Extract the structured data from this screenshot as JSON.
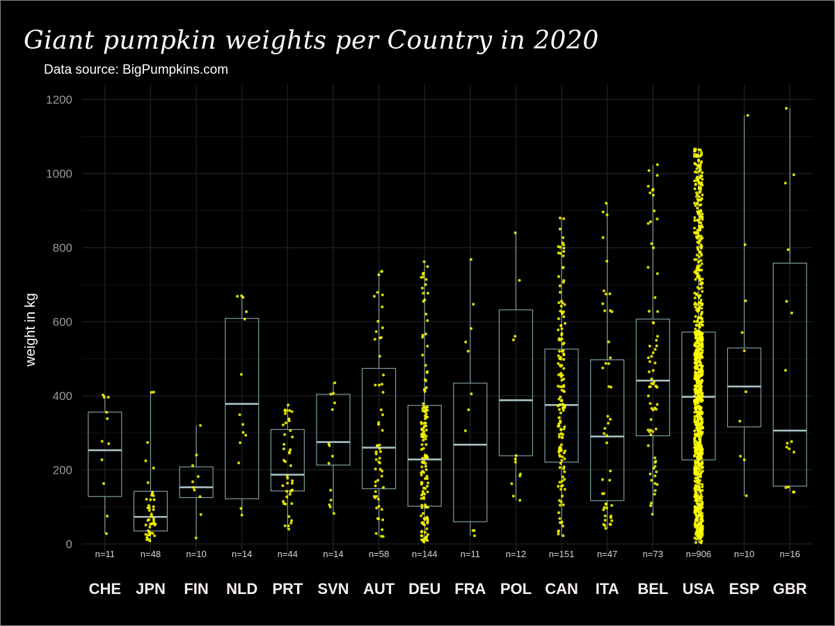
{
  "chart_data": {
    "type": "box",
    "title": "Giant pumpkin weights per Country in 2020",
    "subtitle": "Data source: BigPumpkins.com",
    "ylabel": "weight in kg",
    "xlabel": "",
    "ylim": [
      0,
      1200
    ],
    "yticks": [
      0,
      200,
      400,
      600,
      800,
      1000,
      1200
    ],
    "grid": true,
    "legend": "none",
    "colors": {
      "background": "#000000",
      "points": "#ffff00",
      "box_stroke": "#7f9ea3",
      "median": "#a7c3c6",
      "grid": "#222222",
      "text": "#ffffff",
      "tick_text": "#9a9a9a"
    },
    "categories": [
      "CHE",
      "JPN",
      "FIN",
      "NLD",
      "PRT",
      "SVN",
      "AUT",
      "DEU",
      "FRA",
      "POL",
      "CAN",
      "ITA",
      "BEL",
      "USA",
      "ESP",
      "GBR"
    ],
    "counts": [
      "n=11",
      "n=48",
      "n=10",
      "n=14",
      "n=44",
      "n=14",
      "n=58",
      "n=144",
      "n=11",
      "n=12",
      "n=151",
      "n=47",
      "n=73",
      "n=906",
      "n=10",
      "n=16"
    ],
    "boxes": [
      {
        "category": "CHE",
        "n": 11,
        "min": 28,
        "q1": 128,
        "median": 253,
        "q3": 356,
        "max": 402
      },
      {
        "category": "JPN",
        "n": 48,
        "min": 8,
        "q1": 35,
        "median": 73,
        "q3": 142,
        "max": 410
      },
      {
        "category": "FIN",
        "n": 10,
        "min": 16,
        "q1": 125,
        "median": 153,
        "q3": 208,
        "max": 320
      },
      {
        "category": "NLD",
        "n": 14,
        "min": 78,
        "q1": 122,
        "median": 378,
        "q3": 609,
        "max": 670
      },
      {
        "category": "PRT",
        "n": 44,
        "min": 40,
        "q1": 143,
        "median": 187,
        "q3": 309,
        "max": 375
      },
      {
        "category": "SVN",
        "n": 14,
        "min": 82,
        "q1": 213,
        "median": 275,
        "q3": 404,
        "max": 435
      },
      {
        "category": "AUT",
        "n": 58,
        "min": 20,
        "q1": 149,
        "median": 260,
        "q3": 474,
        "max": 736
      },
      {
        "category": "DEU",
        "n": 144,
        "min": 5,
        "q1": 102,
        "median": 228,
        "q3": 374,
        "max": 762
      },
      {
        "category": "FRA",
        "n": 11,
        "min": 22,
        "q1": 60,
        "median": 268,
        "q3": 434,
        "max": 768
      },
      {
        "category": "POL",
        "n": 12,
        "min": 118,
        "q1": 238,
        "median": 388,
        "q3": 632,
        "max": 840
      },
      {
        "category": "CAN",
        "n": 151,
        "min": 22,
        "q1": 221,
        "median": 375,
        "q3": 526,
        "max": 880
      },
      {
        "category": "ITA",
        "n": 47,
        "min": 42,
        "q1": 117,
        "median": 290,
        "q3": 497,
        "max": 920
      },
      {
        "category": "BEL",
        "n": 73,
        "min": 80,
        "q1": 292,
        "median": 441,
        "q3": 607,
        "max": 1024
      },
      {
        "category": "USA",
        "n": 906,
        "min": 3,
        "q1": 227,
        "median": 397,
        "q3": 572,
        "max": 1066
      },
      {
        "category": "ESP",
        "n": 10,
        "min": 130,
        "q1": 316,
        "median": 425,
        "q3": 529,
        "max": 1157
      },
      {
        "category": "GBR",
        "n": 16,
        "min": 140,
        "q1": 156,
        "median": 306,
        "q3": 758,
        "max": 1176
      }
    ]
  }
}
